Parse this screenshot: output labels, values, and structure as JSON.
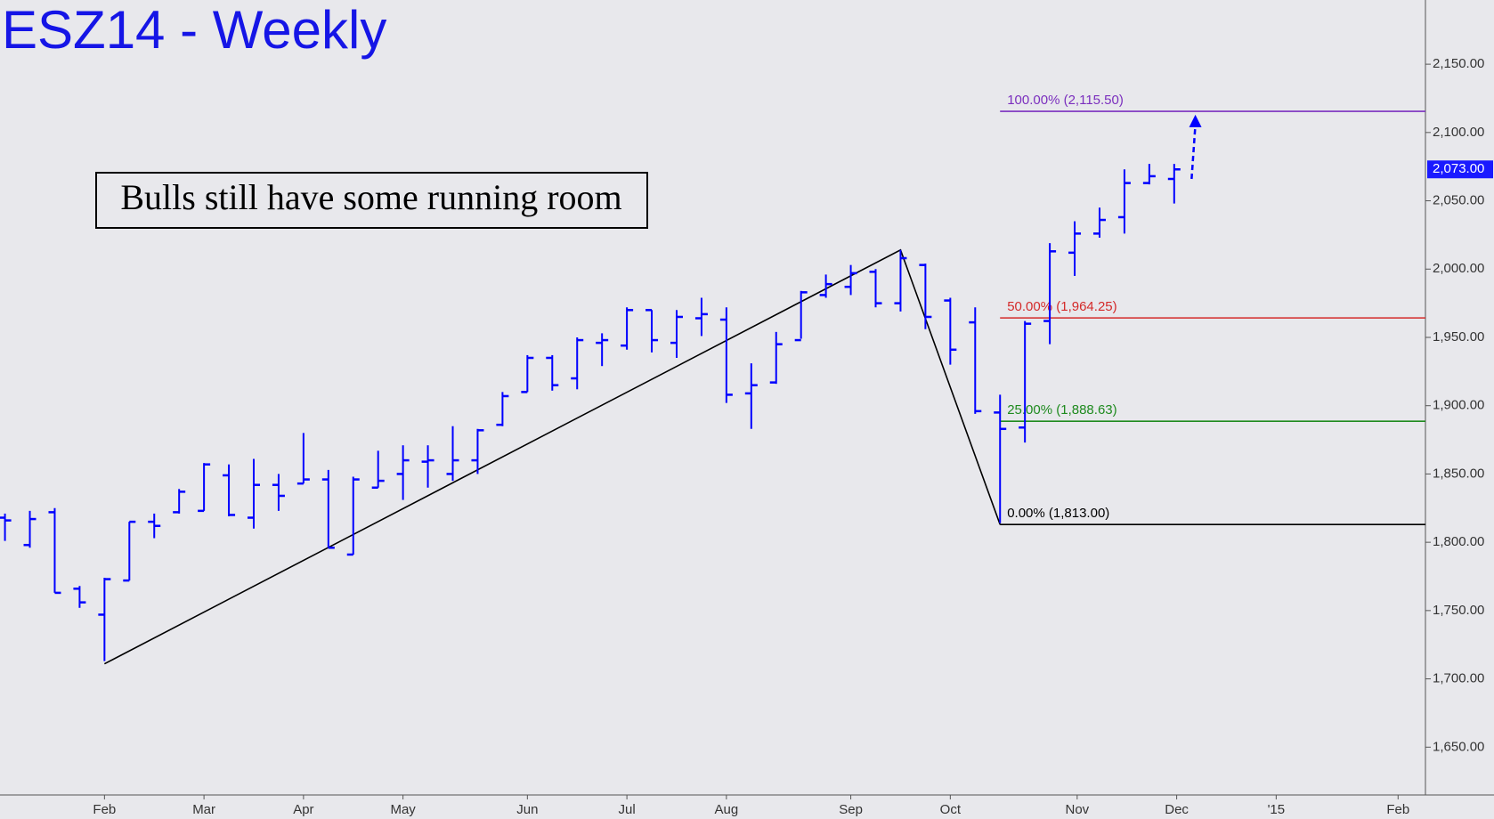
{
  "chart_data": {
    "type": "ohlc",
    "title": "ESZ14 - Weekly",
    "annotation": "Bulls still have some running room",
    "color": "#0000ff",
    "x": [
      0,
      1,
      2,
      3,
      4,
      5,
      6,
      7,
      8,
      9,
      10,
      11,
      12,
      13,
      14,
      15,
      16,
      17,
      18,
      19,
      20,
      21,
      22,
      23,
      24,
      25,
      26,
      27,
      28,
      29,
      30,
      31,
      32,
      33,
      34,
      35,
      36,
      37,
      38,
      39,
      40,
      41,
      42,
      43,
      44,
      45,
      46,
      47
    ],
    "open": [
      1818,
      1798,
      1822,
      1766,
      1747,
      1772,
      1815,
      1822,
      1823,
      1849,
      1818,
      1842,
      1843,
      1846,
      1791,
      1840,
      1850,
      1859,
      1850,
      1860,
      1886,
      1910,
      1935,
      1920,
      1946,
      1944,
      1970,
      1946,
      1964,
      1963,
      1909,
      1917,
      1948,
      1981,
      1987,
      1998,
      1975,
      2003,
      1977,
      1961,
      1895,
      1884,
      1962,
      2012,
      2026,
      2038,
      2063,
      2066
    ],
    "high": [
      1821,
      1823,
      1825,
      1768,
      1774,
      1815,
      1821,
      1839,
      1858,
      1857,
      1861,
      1850,
      1880,
      1853,
      1848,
      1867,
      1871,
      1871,
      1885,
      1883,
      1910,
      1937,
      1937,
      1950,
      1953,
      1972,
      1970,
      1970,
      1979,
      1972,
      1931,
      1954,
      1984,
      1996,
      2003,
      2000,
      2014,
      2004,
      1979,
      1972,
      1908,
      1962,
      2019,
      2035,
      2045,
      2073,
      2077,
      2077
    ],
    "low": [
      1801,
      1796,
      1763,
      1752,
      1713,
      1772,
      1803,
      1821,
      1823,
      1819,
      1810,
      1823,
      1843,
      1796,
      1791,
      1840,
      1831,
      1840,
      1845,
      1850,
      1885,
      1910,
      1911,
      1912,
      1929,
      1941,
      1939,
      1935,
      1951,
      1902,
      1883,
      1916,
      1949,
      1979,
      1981,
      1972,
      1969,
      1956,
      1930,
      1894,
      1814,
      1873,
      1945,
      1995,
      2023,
      2026,
      2062,
      2048
    ],
    "close": [
      1816,
      1817,
      1763,
      1756,
      1773,
      1815,
      1812,
      1837,
      1857,
      1820,
      1842,
      1834,
      1846,
      1796,
      1846,
      1845,
      1860,
      1860,
      1860,
      1882,
      1907,
      1935,
      1915,
      1948,
      1948,
      1970,
      1948,
      1965,
      1967,
      1908,
      1915,
      1945,
      1983,
      1989,
      1997,
      1975,
      2008,
      1965,
      1941,
      1896,
      1883,
      1960,
      2013,
      2026,
      2036,
      2063,
      2068,
      2073
    ],
    "xlim": [
      -0.2,
      57.1
    ],
    "xticks": [
      {
        "value": 4,
        "label": "Feb"
      },
      {
        "value": 8,
        "label": "Mar"
      },
      {
        "value": 12,
        "label": "Apr"
      },
      {
        "value": 16,
        "label": "May"
      },
      {
        "value": 21,
        "label": "Jun"
      },
      {
        "value": 25,
        "label": "Jul"
      },
      {
        "value": 29,
        "label": "Aug"
      },
      {
        "value": 34,
        "label": "Sep"
      },
      {
        "value": 38,
        "label": "Oct"
      },
      {
        "value": 43.1,
        "label": "Nov"
      },
      {
        "value": 47.1,
        "label": "Dec"
      },
      {
        "value": 51.1,
        "label": "'15"
      },
      {
        "value": 56,
        "label": "Feb"
      }
    ],
    "ylim": [
      1615,
      2197
    ],
    "yticks": [
      {
        "value": 1650,
        "label": "1,650.00"
      },
      {
        "value": 1700,
        "label": "1,700.00"
      },
      {
        "value": 1750,
        "label": "1,750.00"
      },
      {
        "value": 1800,
        "label": "1,800.00"
      },
      {
        "value": 1850,
        "label": "1,850.00"
      },
      {
        "value": 1900,
        "label": "1,900.00"
      },
      {
        "value": 1950,
        "label": "1,950.00"
      },
      {
        "value": 2000,
        "label": "2,000.00"
      },
      {
        "value": 2050,
        "label": "2,050.00"
      },
      {
        "value": 2100,
        "label": "2,100.00"
      },
      {
        "value": 2150,
        "label": "2,150.00"
      }
    ],
    "current_price": {
      "value": 2073,
      "label": "2,073.00"
    },
    "fib_start": 40,
    "fib_levels": [
      {
        "label": "100.00% (2,115.50)",
        "value": 2115.5,
        "color": "#7b2fbe"
      },
      {
        "label": "50.00% (1,964.25)",
        "value": 1964.25,
        "color": "#d42a2a"
      },
      {
        "label": "25.00% (1,888.63)",
        "value": 1888.63,
        "color": "#1e8a1e"
      },
      {
        "label": "0.00% (1,813.00)",
        "value": 1813,
        "color": "#000000"
      }
    ],
    "trendline": {
      "x": [
        4,
        36,
        40
      ],
      "y": [
        1711,
        2014,
        1813
      ]
    },
    "arrow": {
      "x": [
        47.7,
        47.85
      ],
      "y": [
        2066,
        2113
      ],
      "color": "#0000ff"
    }
  }
}
